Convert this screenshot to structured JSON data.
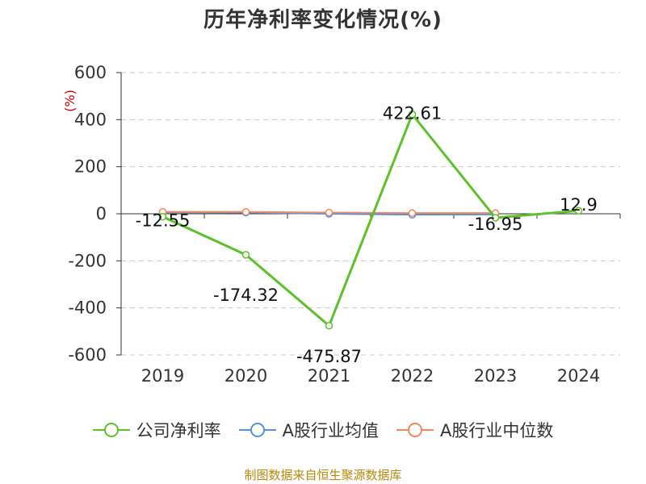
{
  "title": "历年净利率变化情况(%)",
  "source": "制图数据来自恒生聚源数据库",
  "colors": {
    "net_margin": "#5dc12b",
    "industry_avg": "#5a8ede",
    "industry_median": "#f08a5d"
  },
  "chart_data": {
    "type": "line",
    "title": "历年净利率变化情况(%)",
    "ylabel": "(%)",
    "xlabel": "",
    "categories": [
      "2019",
      "2020",
      "2021",
      "2022",
      "2023",
      "2024"
    ],
    "ylim": [
      -600,
      600
    ],
    "yticks": [
      600,
      400,
      200,
      0,
      -200,
      -400,
      -600
    ],
    "grid": true,
    "legend_position": "bottom",
    "series": [
      {
        "name": "公司净利率",
        "values": [
          -12.55,
          -174.32,
          -475.87,
          422.61,
          -16.95,
          12.9
        ],
        "labels": [
          "-12.55",
          "-174.32",
          "-475.87",
          "422.61",
          "-16.95",
          "12.9"
        ]
      },
      {
        "name": "A股行业均值",
        "values": [
          6,
          5,
          0,
          -4,
          -3,
          null
        ]
      },
      {
        "name": "A股行业中位数",
        "values": [
          8,
          8,
          5,
          3,
          3,
          null
        ]
      }
    ]
  }
}
